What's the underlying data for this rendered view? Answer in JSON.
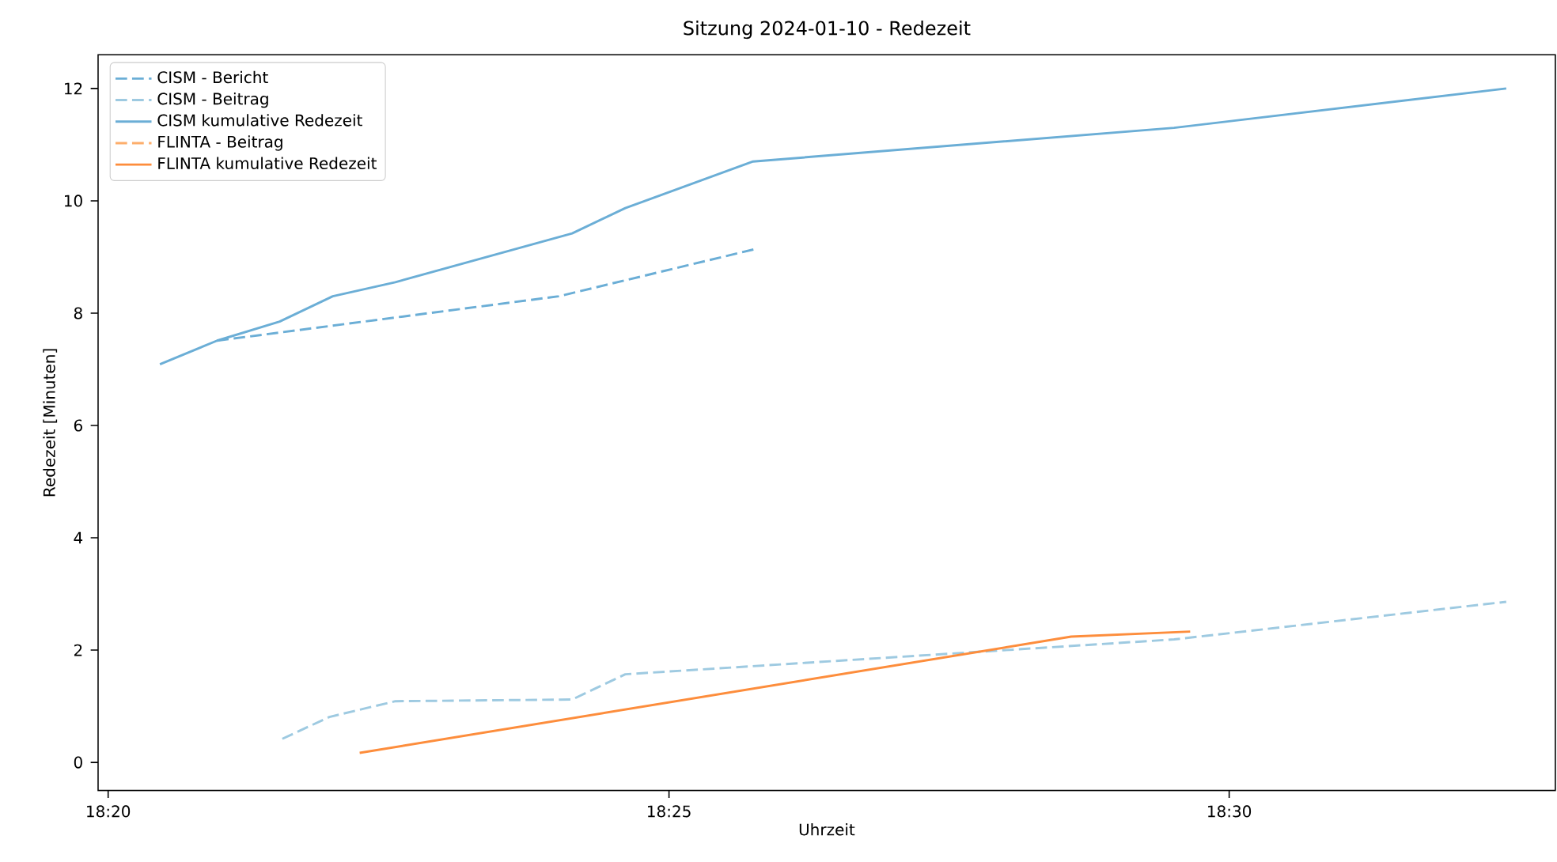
{
  "chart_data": {
    "type": "line",
    "title": "Sitzung 2024-01-10 - Redezeit",
    "xlabel": "Uhrzeit",
    "ylabel": "Redezeit [Minuten]",
    "xlim": [
      18.3318,
      18.5485
    ],
    "xticks": [
      {
        "value": 18.3333,
        "label": "18:20"
      },
      {
        "value": 18.4167,
        "label": "18:25"
      },
      {
        "value": 18.5,
        "label": "18:30"
      }
    ],
    "ylim": [
      -0.5,
      12.6
    ],
    "yticks": [
      0,
      2,
      4,
      6,
      8,
      10,
      12
    ],
    "grid": false,
    "legend": "top left",
    "marker": "none",
    "series": [
      {
        "name": "CISM - Bericht",
        "color": "#6baed6",
        "line_style": "dashed",
        "x": [
          18.3495,
          18.4003,
          18.4295
        ],
        "values": [
          7.51,
          8.3,
          9.14
        ]
      },
      {
        "name": "CISM - Beitrag",
        "color": "#9ecae1",
        "line_style": "dashed",
        "x": [
          18.3592,
          18.3662,
          18.376,
          18.4023,
          18.4102,
          18.4918,
          18.5412
        ],
        "values": [
          0.42,
          0.81,
          1.09,
          1.12,
          1.57,
          2.19,
          2.86
        ]
      },
      {
        "name": "CISM kumulative Redezeit",
        "color": "#6baed6",
        "line_style": "solid",
        "x": [
          18.341,
          18.3495,
          18.3588,
          18.3667,
          18.376,
          18.4023,
          18.4102,
          18.4292,
          18.4918,
          18.5412
        ],
        "values": [
          7.09,
          7.51,
          7.85,
          8.3,
          8.55,
          9.42,
          9.87,
          10.7,
          11.3,
          12.0
        ]
      },
      {
        "name": "FLINTA - Beitrag",
        "color": "#fdae6b",
        "line_style": "dashed"
      },
      {
        "name": "FLINTA kumulative Redezeit",
        "color": "#fd8d3c",
        "line_style": "solid",
        "x": [
          18.3707,
          18.4765,
          18.4942
        ],
        "values": [
          0.17,
          2.24,
          2.33
        ]
      }
    ]
  }
}
